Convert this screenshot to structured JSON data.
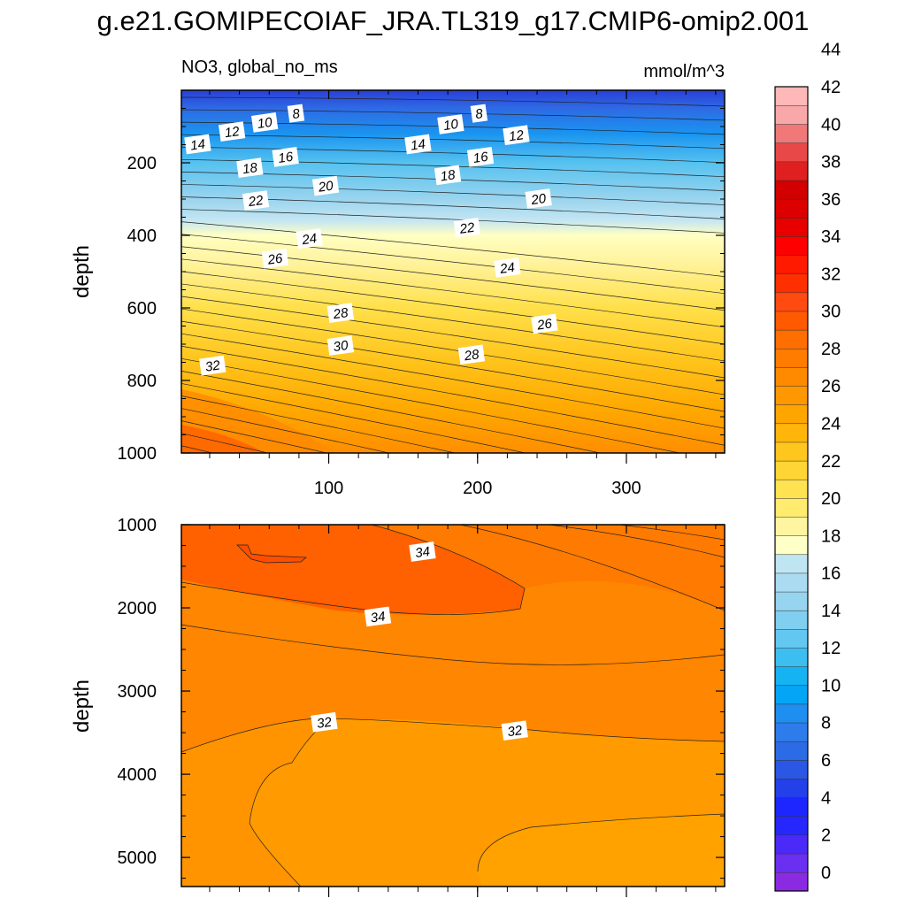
{
  "figure": {
    "title": "g.e21.GOMIPECOIAF_JRA.TL319_g17.CMIP6-omip2.001",
    "variable_label": "NO3, global_no_ms",
    "units_label": "mmol/m^3"
  },
  "chart_data": [
    {
      "type": "contour",
      "panel": "upper",
      "ylabel": "depth",
      "xlabel": "",
      "xlim": [
        1,
        366
      ],
      "ylim": [
        0,
        1000
      ],
      "y_inverted": true,
      "xticks": [
        100,
        200,
        300
      ],
      "yticks": [
        200,
        400,
        600,
        800,
        1000
      ],
      "contour_levels": [
        8,
        10,
        12,
        14,
        16,
        18,
        20,
        22,
        24,
        26,
        28,
        30,
        32
      ],
      "contour_labels": [
        {
          "text": "8",
          "x": 78,
          "y": 65
        },
        {
          "text": "10",
          "x": 57,
          "y": 90
        },
        {
          "text": "12",
          "x": 35,
          "y": 115
        },
        {
          "text": "14",
          "x": 12,
          "y": 150
        },
        {
          "text": "16",
          "x": 71,
          "y": 185
        },
        {
          "text": "18",
          "x": 47,
          "y": 215
        },
        {
          "text": "22",
          "x": 51,
          "y": 305
        },
        {
          "text": "20",
          "x": 98,
          "y": 265
        },
        {
          "text": "24",
          "x": 87,
          "y": 410
        },
        {
          "text": "26",
          "x": 64,
          "y": 465
        },
        {
          "text": "28",
          "x": 108,
          "y": 615
        },
        {
          "text": "30",
          "x": 108,
          "y": 705
        },
        {
          "text": "32",
          "x": 22,
          "y": 760
        },
        {
          "text": "8",
          "x": 201,
          "y": 65
        },
        {
          "text": "10",
          "x": 182,
          "y": 95
        },
        {
          "text": "14",
          "x": 160,
          "y": 150
        },
        {
          "text": "12",
          "x": 226,
          "y": 125
        },
        {
          "text": "16",
          "x": 202,
          "y": 185
        },
        {
          "text": "18",
          "x": 180,
          "y": 235
        },
        {
          "text": "20",
          "x": 241,
          "y": 300
        },
        {
          "text": "22",
          "x": 193,
          "y": 380
        },
        {
          "text": "24",
          "x": 220,
          "y": 490
        },
        {
          "text": "26",
          "x": 245,
          "y": 645
        },
        {
          "text": "28",
          "x": 196,
          "y": 730
        }
      ]
    },
    {
      "type": "contour",
      "panel": "lower",
      "ylabel": "depth",
      "xlabel": "",
      "xlim": [
        1,
        366
      ],
      "ylim": [
        1000,
        5350
      ],
      "y_inverted": true,
      "xticks": [
        100,
        200,
        300
      ],
      "yticks": [
        1000,
        2000,
        3000,
        4000,
        5000
      ],
      "contour_levels": [
        31,
        32,
        33,
        34
      ],
      "contour_labels": [
        {
          "text": "34",
          "x": 163,
          "y": 1330
        },
        {
          "text": "34",
          "x": 133,
          "y": 2110
        },
        {
          "text": "32",
          "x": 97,
          "y": 3380
        },
        {
          "text": "32",
          "x": 225,
          "y": 3480
        }
      ]
    }
  ],
  "colorbar": {
    "labels": [
      "0",
      "2",
      "4",
      "6",
      "8",
      "10",
      "12",
      "14",
      "16",
      "18",
      "20",
      "22",
      "24",
      "26",
      "28",
      "30",
      "32",
      "34",
      "36",
      "38",
      "40",
      "42",
      "44"
    ],
    "colors": [
      "#8A2BE2",
      "#6A2FF0",
      "#4B2AF8",
      "#2626FF",
      "#1E26FF",
      "#2440E8",
      "#2A57E4",
      "#2C6BE6",
      "#2E7CEC",
      "#1E8EF0",
      "#05A5F5",
      "#16B3F2",
      "#3CBFF0",
      "#62C8F2",
      "#80CFF0",
      "#97D4EF",
      "#AADBF0",
      "#C0E5F2",
      "#FFFFC8",
      "#FFF5A0",
      "#FFEB6E",
      "#FFE250",
      "#FFD535",
      "#FFC61E",
      "#FFB50A",
      "#FFA500",
      "#FF9800",
      "#FF8A00",
      "#FF7C00",
      "#FF6E00",
      "#FF5A00",
      "#FF4A10",
      "#FF3000",
      "#FF1A00",
      "#FF0000",
      "#E80000",
      "#DC0000",
      "#D20000",
      "#E02020",
      "#E84848",
      "#F07878",
      "#F8A8A8",
      "#FFB8B8"
    ]
  }
}
